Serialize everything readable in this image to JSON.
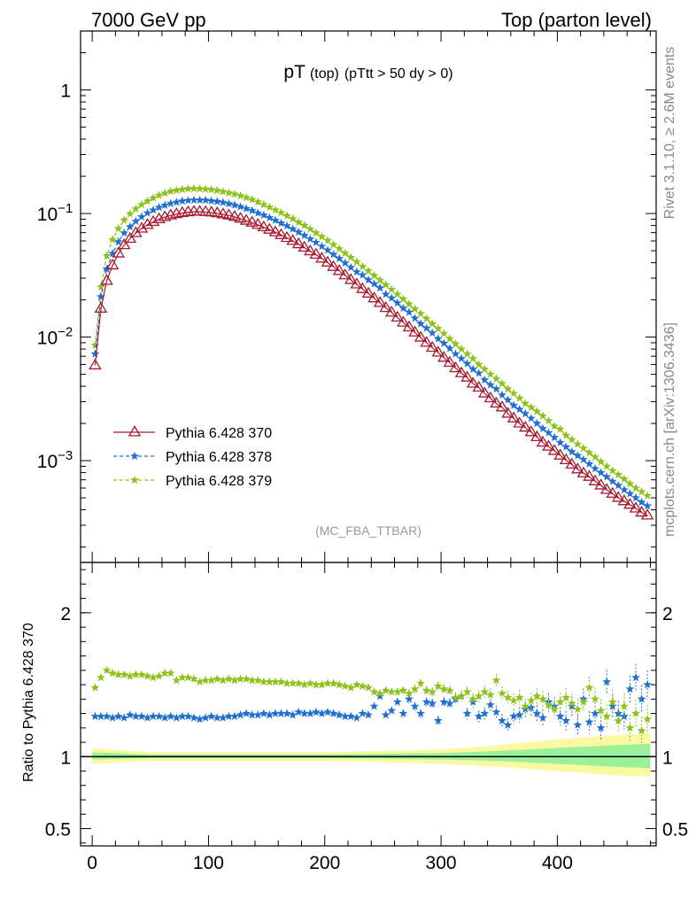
{
  "header": {
    "left": "7000 GeV pp",
    "right": "Top (parton level)"
  },
  "title": {
    "main": "pT",
    "sub1": "(top)",
    "sub2": "(pTtt > 50 dy > 0)"
  },
  "side_labels": {
    "rivet": "Rivet 3.1.10, ≥ 2.6M events",
    "mcplots": "mcplots.cern.ch [arXiv:1306.3436]"
  },
  "analysis_label": "(MC_FBA_TTBAR)",
  "ratio_ylabel": "Ratio to Pythia 6.428 370",
  "colors": {
    "s370": "#a6192e",
    "s378": "#1f6fd1",
    "s379": "#8cc21a",
    "band_yellow": "#fbf8a2",
    "band_green": "#9af19a"
  },
  "legend": [
    {
      "label": "Pythia 6.428 370",
      "key": "s370"
    },
    {
      "label": "Pythia 6.428 378",
      "key": "s378"
    },
    {
      "label": "Pythia 6.428 379",
      "key": "s379"
    }
  ],
  "chart_data": [
    {
      "type": "line",
      "panel": "main",
      "yscale": "log",
      "xlim": [
        -10,
        485
      ],
      "ylim": [
        0.00015,
        3.0
      ],
      "yticks": [
        {
          "v": 1,
          "label": "1"
        },
        {
          "v": 0.1,
          "label": "10",
          "exp": "−1"
        },
        {
          "v": 0.01,
          "label": "10",
          "exp": "−2"
        },
        {
          "v": 0.001,
          "label": "10",
          "exp": "−3"
        }
      ],
      "x": [
        2.5,
        7.5,
        12.5,
        17.5,
        22.5,
        27.5,
        32.5,
        37.5,
        42.5,
        47.5,
        52.5,
        57.5,
        62.5,
        67.5,
        72.5,
        77.5,
        82.5,
        87.5,
        92.5,
        97.5,
        102.5,
        107.5,
        112.5,
        117.5,
        122.5,
        127.5,
        132.5,
        137.5,
        142.5,
        147.5,
        152.5,
        157.5,
        162.5,
        167.5,
        172.5,
        177.5,
        182.5,
        187.5,
        192.5,
        197.5,
        202.5,
        207.5,
        212.5,
        217.5,
        222.5,
        227.5,
        232.5,
        237.5,
        242.5,
        247.5,
        252.5,
        257.5,
        262.5,
        267.5,
        272.5,
        277.5,
        282.5,
        287.5,
        292.5,
        297.5,
        302.5,
        307.5,
        312.5,
        317.5,
        322.5,
        327.5,
        332.5,
        337.5,
        342.5,
        347.5,
        352.5,
        357.5,
        362.5,
        367.5,
        372.5,
        377.5,
        382.5,
        387.5,
        392.5,
        397.5,
        402.5,
        407.5,
        412.5,
        417.5,
        422.5,
        427.5,
        432.5,
        437.5,
        442.5,
        447.5,
        452.5,
        457.5,
        462.5,
        467.5,
        472.5,
        477.5
      ],
      "series": [
        {
          "name": "Pythia 6.428 370",
          "key": "s370",
          "marker": "triangle",
          "dash": "",
          "values": [
            0.0059,
            0.017,
            0.0285,
            0.038,
            0.0475,
            0.0555,
            0.0625,
            0.0695,
            0.0755,
            0.081,
            0.0855,
            0.09,
            0.0935,
            0.0965,
            0.099,
            0.101,
            0.1025,
            0.1035,
            0.1035,
            0.103,
            0.102,
            0.1005,
            0.0985,
            0.0965,
            0.094,
            0.091,
            0.0875,
            0.0845,
            0.081,
            0.0775,
            0.074,
            0.0705,
            0.067,
            0.0635,
            0.06,
            0.0565,
            0.053,
            0.0495,
            0.0465,
            0.0432,
            0.0401,
            0.037,
            0.0343,
            0.0316,
            0.029,
            0.0267,
            0.0245,
            0.0225,
            0.0206,
            0.0189,
            0.0172,
            0.0158,
            0.0144,
            0.0131,
            0.012,
            0.0109,
            0.0099,
            0.009,
            0.0082,
            0.0075,
            0.0068,
            0.0062,
            0.0056,
            0.0051,
            0.0047,
            0.0042,
            0.0039,
            0.0035,
            0.0032,
            0.0029,
            0.0027,
            0.0024,
            0.0022,
            0.002,
            0.00185,
            0.0017,
            0.00155,
            0.0014,
            0.0013,
            0.0012,
            0.0011,
            0.00101,
            0.00093,
            0.00085,
            0.00079,
            0.00074,
            0.00068,
            0.00063,
            0.00058,
            0.00054,
            0.0005,
            0.00047,
            0.00044,
            0.00041,
            0.00038,
            0.00036
          ]
        },
        {
          "name": "Pythia 6.428 378",
          "key": "s378",
          "marker": "star",
          "dash": "4,3",
          "values": [
            0.0073,
            0.0212,
            0.0355,
            0.0475,
            0.059,
            0.0695,
            0.078,
            0.0865,
            0.094,
            0.101,
            0.1065,
            0.112,
            0.1165,
            0.1205,
            0.1235,
            0.126,
            0.1275,
            0.1285,
            0.1285,
            0.128,
            0.1265,
            0.125,
            0.123,
            0.12,
            0.117,
            0.1135,
            0.1095,
            0.1055,
            0.101,
            0.097,
            0.0925,
            0.088,
            0.0835,
            0.0795,
            0.075,
            0.0708,
            0.0665,
            0.0622,
            0.0583,
            0.0542,
            0.0505,
            0.0466,
            0.0432,
            0.0398,
            0.0366,
            0.0337,
            0.0318,
            0.029,
            0.0269,
            0.025,
            0.0222,
            0.0207,
            0.0189,
            0.0171,
            0.0159,
            0.0142,
            0.0128,
            0.0118,
            0.0108,
            0.0097,
            0.0089,
            0.0081,
            0.0073,
            0.0067,
            0.0061,
            0.0055,
            0.0051,
            0.0045,
            0.0041,
            0.0038,
            0.0034,
            0.0031,
            0.0028,
            0.0026,
            0.0024,
            0.0022,
            0.002,
            0.00182,
            0.00168,
            0.00154,
            0.0014,
            0.00129,
            0.00118,
            0.0011,
            0.00102,
            0.00094,
            0.00086,
            0.0008,
            0.00074,
            0.00068,
            0.00063,
            0.00058,
            0.00054,
            0.0005,
            0.00046,
            0.00043
          ]
        },
        {
          "name": "Pythia 6.428 379",
          "key": "s379",
          "marker": "star",
          "dash": "4,3",
          "values": [
            0.0086,
            0.0255,
            0.0455,
            0.0615,
            0.0755,
            0.0885,
            0.0995,
            0.109,
            0.118,
            0.126,
            0.1335,
            0.1405,
            0.146,
            0.151,
            0.154,
            0.1565,
            0.1585,
            0.159,
            0.1585,
            0.1575,
            0.156,
            0.1535,
            0.1505,
            0.147,
            0.1435,
            0.1395,
            0.1345,
            0.1295,
            0.124,
            0.118,
            0.1125,
            0.107,
            0.1015,
            0.096,
            0.0905,
            0.085,
            0.08,
            0.0748,
            0.0698,
            0.065,
            0.0605,
            0.056,
            0.0518,
            0.0478,
            0.0441,
            0.0406,
            0.0373,
            0.0343,
            0.0315,
            0.0289,
            0.0265,
            0.0243,
            0.0222,
            0.0203,
            0.0185,
            0.0169,
            0.0155,
            0.0141,
            0.0128,
            0.0117,
            0.0107,
            0.0097,
            0.0088,
            0.008,
            0.0073,
            0.0067,
            0.006,
            0.0055,
            0.005,
            0.0046,
            0.0042,
            0.0038,
            0.0035,
            0.0032,
            0.0029,
            0.0027,
            0.0025,
            0.0023,
            0.0021,
            0.0019,
            0.0018,
            0.0016,
            0.00148,
            0.00136,
            0.00126,
            0.00116,
            0.00107,
            0.00098,
            0.0009,
            0.00083,
            0.00077,
            0.00071,
            0.00065,
            0.0006,
            0.00056,
            0.00052
          ]
        }
      ]
    },
    {
      "type": "scatter",
      "panel": "ratio",
      "ylim": [
        0.38,
        2.35
      ],
      "yticks": [
        {
          "v": 2,
          "label": "2"
        },
        {
          "v": 1,
          "label": "1"
        },
        {
          "v": 0.5,
          "label": "0.5"
        }
      ],
      "xticks": [
        0,
        100,
        200,
        300,
        400
      ],
      "reference_line": 1.0,
      "band_yellow": {
        "x": [
          0,
          50,
          100,
          150,
          200,
          250,
          300,
          350,
          400,
          450,
          480
        ],
        "lo": [
          0.95,
          0.97,
          0.97,
          0.97,
          0.97,
          0.96,
          0.95,
          0.93,
          0.9,
          0.87,
          0.86
        ],
        "hi": [
          1.06,
          1.03,
          1.03,
          1.03,
          1.03,
          1.04,
          1.05,
          1.08,
          1.12,
          1.15,
          1.16
        ]
      },
      "band_green": {
        "x": [
          0,
          50,
          100,
          150,
          200,
          250,
          300,
          350,
          400,
          450,
          480
        ],
        "lo": [
          0.98,
          0.99,
          0.99,
          0.99,
          0.99,
          0.985,
          0.98,
          0.97,
          0.95,
          0.93,
          0.92
        ],
        "hi": [
          1.03,
          1.015,
          1.015,
          1.015,
          1.015,
          1.02,
          1.025,
          1.04,
          1.06,
          1.08,
          1.09
        ]
      },
      "series": [
        {
          "name": "Pythia 6.428 378",
          "key": "s378",
          "values": [
            1.28,
            1.28,
            1.28,
            1.27,
            1.28,
            1.27,
            1.29,
            1.28,
            1.28,
            1.27,
            1.28,
            1.28,
            1.27,
            1.28,
            1.27,
            1.28,
            1.28,
            1.27,
            1.26,
            1.27,
            1.28,
            1.27,
            1.27,
            1.28,
            1.28,
            1.29,
            1.3,
            1.29,
            1.29,
            1.3,
            1.29,
            1.3,
            1.3,
            1.3,
            1.29,
            1.31,
            1.3,
            1.3,
            1.31,
            1.3,
            1.31,
            1.3,
            1.29,
            1.28,
            1.28,
            1.27,
            1.3,
            1.29,
            1.35,
            1.42,
            1.29,
            1.32,
            1.38,
            1.3,
            1.4,
            1.35,
            1.3,
            1.38,
            1.37,
            1.25,
            1.38,
            1.37,
            1.4,
            1.42,
            1.3,
            1.38,
            1.28,
            1.3,
            1.36,
            1.31,
            1.25,
            1.22,
            1.28,
            1.29,
            1.33,
            1.34,
            1.3,
            1.27,
            1.38,
            1.35,
            1.28,
            1.25,
            1.35,
            1.22,
            1.4,
            1.24,
            1.3,
            1.2,
            1.52,
            1.35,
            1.3,
            1.28,
            1.47,
            1.55,
            1.4,
            1.5
          ]
        },
        {
          "name": "Pythia 6.428 379",
          "key": "s379",
          "values": [
            1.48,
            1.55,
            1.6,
            1.58,
            1.57,
            1.57,
            1.56,
            1.57,
            1.57,
            1.56,
            1.55,
            1.56,
            1.58,
            1.58,
            1.53,
            1.55,
            1.55,
            1.54,
            1.52,
            1.53,
            1.53,
            1.54,
            1.53,
            1.54,
            1.53,
            1.54,
            1.54,
            1.53,
            1.53,
            1.52,
            1.52,
            1.52,
            1.52,
            1.51,
            1.51,
            1.51,
            1.5,
            1.51,
            1.5,
            1.5,
            1.51,
            1.51,
            1.5,
            1.49,
            1.48,
            1.5,
            1.49,
            1.48,
            1.45,
            1.44,
            1.46,
            1.45,
            1.45,
            1.46,
            1.44,
            1.47,
            1.51,
            1.46,
            1.45,
            1.49,
            1.47,
            1.46,
            1.41,
            1.42,
            1.45,
            1.4,
            1.42,
            1.45,
            1.43,
            1.53,
            1.44,
            1.41,
            1.39,
            1.41,
            1.35,
            1.39,
            1.42,
            1.4,
            1.36,
            1.33,
            1.38,
            1.41,
            1.37,
            1.33,
            1.38,
            1.48,
            1.4,
            1.32,
            1.28,
            1.38,
            1.25,
            1.35,
            1.2,
            1.3,
            1.18,
            1.26
          ]
        }
      ]
    }
  ]
}
